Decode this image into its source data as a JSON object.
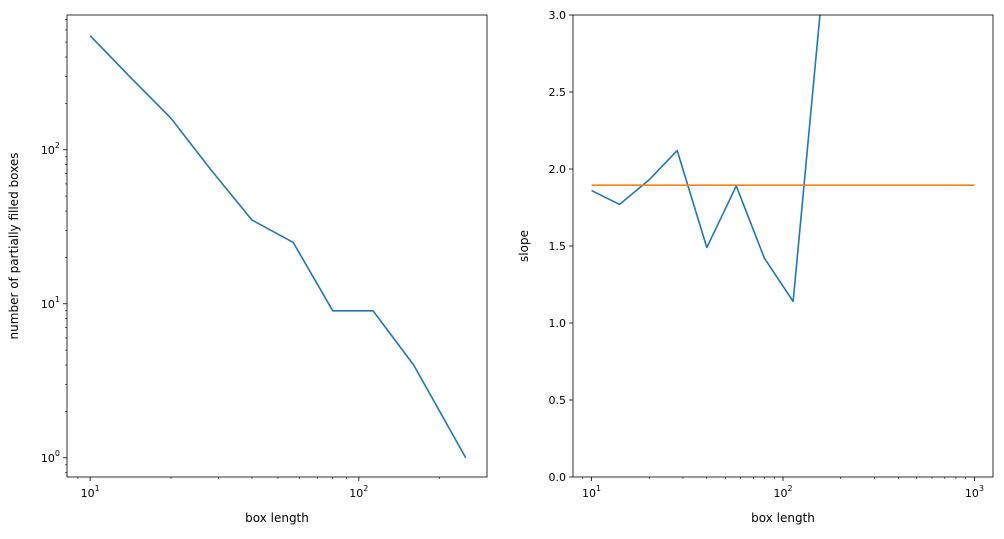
{
  "chart_data": [
    {
      "type": "line",
      "title": "",
      "xlabel": "box length",
      "ylabel": "number of partially filled boxes",
      "xscale": "log",
      "yscale": "log",
      "xlim": [
        8.2,
        300
      ],
      "ylim": [
        0.75,
        750
      ],
      "grid": false,
      "x_ticks": [
        {
          "value": 10,
          "base": "10",
          "exp": "1"
        },
        {
          "value": 100,
          "base": "10",
          "exp": "2"
        }
      ],
      "y_ticks": [
        {
          "value": 1,
          "base": "10",
          "exp": "0"
        },
        {
          "value": 10,
          "base": "10",
          "exp": "1"
        },
        {
          "value": 100,
          "base": "10",
          "exp": "2"
        }
      ],
      "series": [
        {
          "color": "#1f77b4",
          "x": [
            10,
            14,
            20,
            28,
            40,
            57,
            80,
            113,
            160,
            250
          ],
          "y": [
            550,
            300,
            160,
            75,
            35,
            25,
            9,
            9,
            4,
            1
          ]
        }
      ]
    },
    {
      "type": "line",
      "title": "",
      "xlabel": "box length",
      "ylabel": "slope",
      "xscale": "log",
      "yscale": "linear",
      "xlim": [
        8,
        1250
      ],
      "ylim": [
        0.0,
        3.0
      ],
      "grid": false,
      "x_ticks": [
        {
          "value": 10,
          "base": "10",
          "exp": "1"
        },
        {
          "value": 100,
          "base": "10",
          "exp": "2"
        },
        {
          "value": 1000,
          "base": "10",
          "exp": "3"
        }
      ],
      "y_ticks": [
        {
          "value": 0.0,
          "label": "0.0"
        },
        {
          "value": 0.5,
          "label": "0.5"
        },
        {
          "value": 1.0,
          "label": "1.0"
        },
        {
          "value": 1.5,
          "label": "1.5"
        },
        {
          "value": 2.0,
          "label": "2.0"
        },
        {
          "value": 2.5,
          "label": "2.5"
        },
        {
          "value": 3.0,
          "label": "3.0"
        }
      ],
      "series": [
        {
          "color": "#1f77b4",
          "x": [
            10,
            14,
            20,
            28,
            40,
            57,
            80,
            113,
            160
          ],
          "y": [
            1.86,
            1.77,
            1.93,
            2.12,
            1.49,
            1.89,
            1.42,
            1.14,
            3.15
          ]
        },
        {
          "color": "#ff7f0e",
          "x": [
            10,
            1000
          ],
          "y": [
            1.895,
            1.895
          ]
        }
      ]
    }
  ]
}
